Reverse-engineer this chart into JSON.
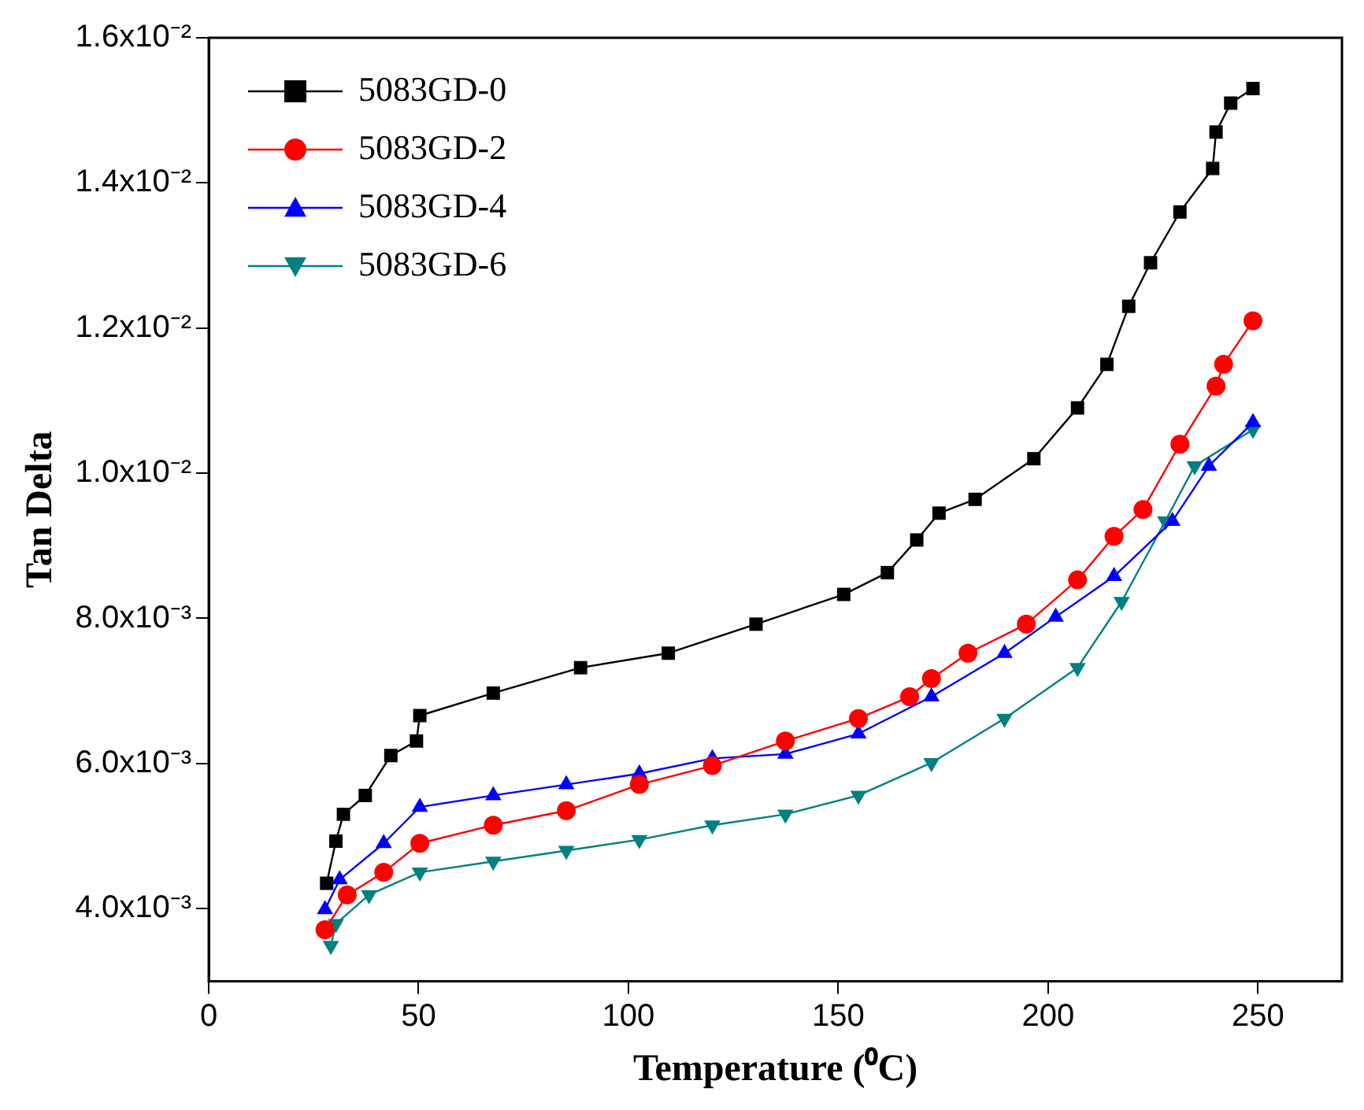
{
  "chart_data": {
    "type": "line",
    "xlabel": "Temperature (⁰C)",
    "ylabel": "Tan Delta",
    "xlim": [
      0,
      270
    ],
    "xticks": [
      0,
      50,
      100,
      150,
      200,
      250
    ],
    "ylim": [
      0.003,
      0.016
    ],
    "yticks": [
      {
        "value": 0.004,
        "label": "4.0x10⁻³"
      },
      {
        "value": 0.006,
        "label": "6.0x10⁻³"
      },
      {
        "value": 0.008,
        "label": "8.0x10⁻³"
      },
      {
        "value": 0.01,
        "label": "1.0x10⁻²"
      },
      {
        "value": 0.012,
        "label": "1.2x10⁻²"
      },
      {
        "value": 0.014,
        "label": "1.4x10⁻²"
      },
      {
        "value": 0.016,
        "label": "1.6x10⁻²"
      }
    ],
    "grid": false,
    "legend": "top left",
    "line_style": "solid",
    "series": [
      {
        "name": "5083GD-0",
        "color": "#000000",
        "marker": "square",
        "x": [
          28.1,
          30.3,
          32.1,
          37.3,
          43.4,
          49.5,
          50.3,
          67.8,
          88.6,
          109.5,
          130.4,
          151.3,
          161.7,
          168.7,
          174,
          182.6,
          196.6,
          207,
          214,
          219.2,
          224.4,
          231.4,
          239.2,
          240,
          243.5,
          248.8
        ],
        "values": [
          0.00435,
          0.00493,
          0.0053,
          0.00556,
          0.00611,
          0.00631,
          0.00666,
          0.00697,
          0.00732,
          0.00752,
          0.00792,
          0.00833,
          0.00863,
          0.00908,
          0.00945,
          0.00964,
          0.0102,
          0.0109,
          0.0115,
          0.0123,
          0.0129,
          0.0136,
          0.0142,
          0.0147,
          0.0151,
          0.0153
        ]
      },
      {
        "name": "5083GD-2",
        "color": "#ff0000",
        "marker": "circle",
        "x": [
          27.7,
          33,
          41.7,
          50.3,
          67.8,
          85.2,
          102.6,
          120,
          137.4,
          154.8,
          167,
          172.2,
          180.9,
          194.8,
          207,
          215.7,
          222.6,
          231.4,
          240,
          241.8,
          248.8
        ],
        "values": [
          0.00371,
          0.00419,
          0.0045,
          0.0049,
          0.00515,
          0.00535,
          0.00571,
          0.00597,
          0.00631,
          0.00662,
          0.00692,
          0.00717,
          0.00752,
          0.00792,
          0.00853,
          0.00913,
          0.0095,
          0.0104,
          0.0112,
          0.0115,
          0.0121
        ]
      },
      {
        "name": "5083GD-4",
        "color": "#0000ff",
        "marker": "triangle",
        "x": [
          27.7,
          31.2,
          41.7,
          50.3,
          67.8,
          85.2,
          102.6,
          120,
          137.4,
          154.8,
          172.2,
          189.6,
          201.8,
          215.7,
          229.6,
          238.3,
          248.8
        ],
        "values": [
          0.00399,
          0.0044,
          0.0049,
          0.0054,
          0.00556,
          0.00571,
          0.00586,
          0.00607,
          0.00613,
          0.00641,
          0.00692,
          0.00752,
          0.00802,
          0.00858,
          0.00934,
          0.0101,
          0.0107
        ]
      },
      {
        "name": "5083GD-6",
        "color": "#008080",
        "marker": "triangle-down",
        "x": [
          29.1,
          30.3,
          38.2,
          50.3,
          67.8,
          85.2,
          102.6,
          120,
          137.4,
          154.8,
          172.2,
          189.6,
          207,
          217.5,
          227.9,
          234.9,
          248.8
        ],
        "values": [
          0.00349,
          0.00379,
          0.00419,
          0.0045,
          0.00465,
          0.0048,
          0.00495,
          0.00515,
          0.0053,
          0.00556,
          0.00601,
          0.00662,
          0.00732,
          0.00823,
          0.00934,
          0.0101,
          0.0106
        ]
      }
    ]
  }
}
